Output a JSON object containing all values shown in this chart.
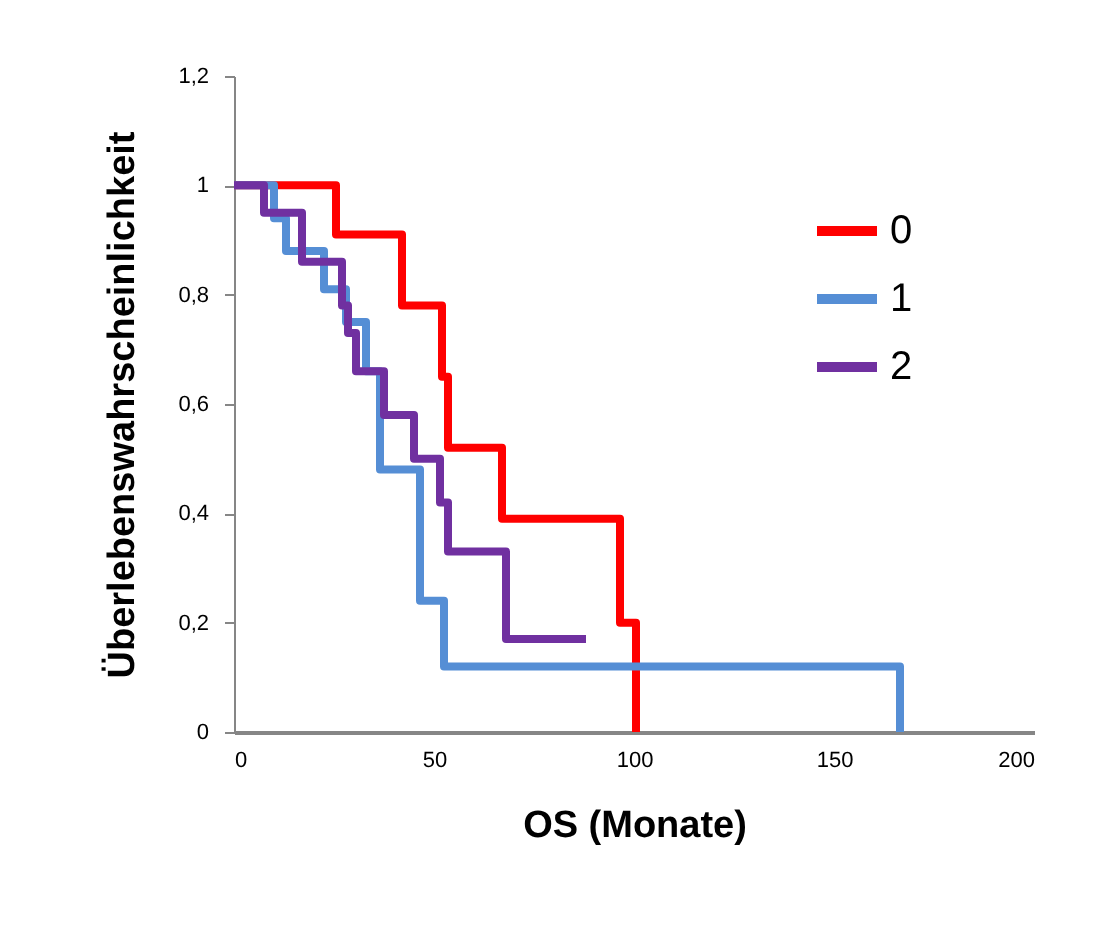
{
  "chart_data": {
    "type": "step",
    "xlabel": "OS (Monate)",
    "ylabel": "Überlebenswahrscheinlichkeit",
    "xlim": [
      0,
      200
    ],
    "xticks": [
      0,
      50,
      100,
      150,
      200
    ],
    "ylim": [
      0,
      1.2
    ],
    "yticks": [
      {
        "value": 0,
        "label": "0"
      },
      {
        "value": 0.2,
        "label": "0,2"
      },
      {
        "value": 0.4,
        "label": "0,4"
      },
      {
        "value": 0.6,
        "label": "0,6"
      },
      {
        "value": 0.8,
        "label": "0,8"
      },
      {
        "value": 1,
        "label": "1"
      },
      {
        "value": 1.2,
        "label": "1,2"
      }
    ],
    "grid": false,
    "legend": "top right",
    "marker": "none",
    "line_style": "solid",
    "series": [
      {
        "name": "0",
        "color": "#ff0000",
        "x": [
          0,
          25.5,
          42,
          52,
          53.5,
          67,
          96.5,
          100.5
        ],
        "values": [
          1,
          0.91,
          0.78,
          0.65,
          0.52,
          0.39,
          0.2,
          0
        ]
      },
      {
        "name": "1",
        "color": "#558ed5",
        "x": [
          0,
          10,
          13,
          22.5,
          28,
          33,
          36.5,
          46.5,
          52.5,
          166.5
        ],
        "values": [
          1,
          0.94,
          0.88,
          0.81,
          0.75,
          0.66,
          0.48,
          0.24,
          0.12,
          0
        ]
      },
      {
        "name": "2",
        "color": "#7030a0",
        "x": [
          0,
          7.5,
          17,
          27,
          28.5,
          30.5,
          37.5,
          45,
          51.5,
          53.5,
          68,
          88
        ],
        "values": [
          1,
          0.95,
          0.86,
          0.78,
          0.73,
          0.66,
          0.58,
          0.5,
          0.42,
          0.33,
          0.17,
          0.17
        ]
      }
    ]
  }
}
